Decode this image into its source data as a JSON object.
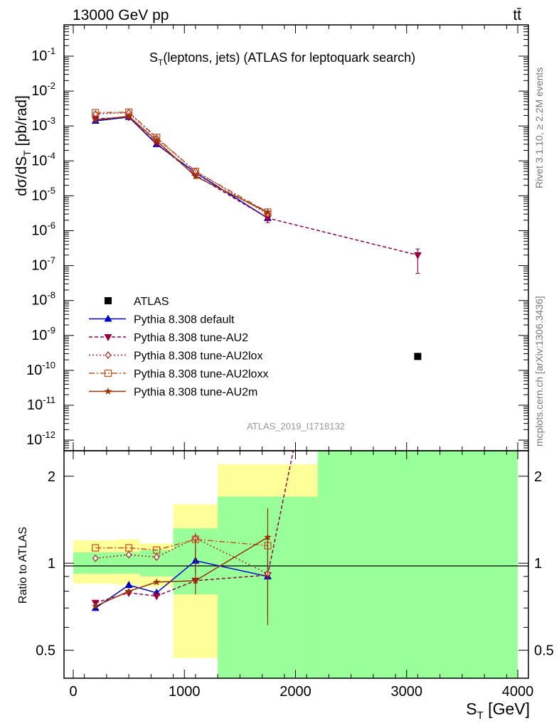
{
  "header": {
    "left": "13000 GeV pp",
    "right": "tt̄"
  },
  "side_labels": {
    "rivet": "Rivet 3.1.10, ≥ 2.2M events",
    "mcplots": "mcplots.cern.ch [arXiv:1306.3436]"
  },
  "chart_data": [
    {
      "type": "line",
      "panel": "main",
      "title": "S_T(leptons, jets) (ATLAS for leptoquark search)",
      "ylabel": "dσ/dS_T [pb/rad]",
      "ylog": true,
      "ylim": [
        5e-13,
        1
      ],
      "xlim": [
        -100,
        4000
      ],
      "y_ticks": [
        {
          "exp": -12,
          "label": "10^-12"
        },
        {
          "exp": -11,
          "label": "10^-11"
        },
        {
          "exp": -10,
          "label": "10^-10"
        },
        {
          "exp": -9,
          "label": "10^-9"
        },
        {
          "exp": -8,
          "label": "10^-8"
        },
        {
          "exp": -7,
          "label": "10^-7"
        },
        {
          "exp": -6,
          "label": "10^-6"
        },
        {
          "exp": -5,
          "label": "10^-5"
        },
        {
          "exp": -4,
          "label": "10^-4"
        },
        {
          "exp": -3,
          "label": "10^-3"
        },
        {
          "exp": -2,
          "label": "10^-2"
        },
        {
          "exp": -1,
          "label": "10^-1"
        }
      ],
      "watermark": "ATLAS_2019_I1718132",
      "data_points": {
        "name": "ATLAS",
        "marker": "square",
        "color": "#000000",
        "points": [
          {
            "x": 3100,
            "y": 2.5e-10
          }
        ]
      },
      "series": [
        {
          "name": "Pythia 8.308 default",
          "color": "#0000cc",
          "dash": "",
          "marker": "triangle-up",
          "x": [
            200,
            500,
            750,
            1100,
            1750
          ],
          "y": [
            0.0014,
            0.0018,
            0.0003,
            4.6e-05,
            2.3e-06
          ]
        },
        {
          "name": "Pythia 8.308 tune-AU2",
          "color": "#990044",
          "dash": "5,3",
          "marker": "triangle-down",
          "x": [
            200,
            500,
            750,
            1100,
            1750,
            3100
          ],
          "y": [
            0.0016,
            0.0018,
            0.00032,
            3.9e-05,
            2.3e-06,
            2e-07
          ],
          "err_low": [
            null,
            null,
            null,
            null,
            1.7e-06,
            6e-08
          ],
          "err_high": [
            null,
            null,
            null,
            null,
            3e-06,
            3e-07
          ]
        },
        {
          "name": "Pythia 8.308 tune-AU2lox",
          "color": "#aa2222",
          "dash": "2,3",
          "marker": "diamond",
          "x": [
            200,
            500,
            750,
            1100,
            1750
          ],
          "y": [
            0.0022,
            0.0024,
            0.00044,
            5e-05,
            3e-06
          ]
        },
        {
          "name": "Pythia 8.308 tune-AU2loxx",
          "color": "#cc5522",
          "dash": "8,3,2,3",
          "marker": "square-open",
          "x": [
            200,
            500,
            750,
            1100,
            1750
          ],
          "y": [
            0.0024,
            0.0025,
            0.00047,
            5e-05,
            3.4e-06
          ]
        },
        {
          "name": "Pythia 8.308 tune-AU2m",
          "color": "#993300",
          "dash": "",
          "marker": "star",
          "x": [
            200,
            500,
            750,
            1100,
            1750
          ],
          "y": [
            0.0015,
            0.0019,
            0.00038,
            3.6e-05,
            3.4e-06
          ]
        }
      ]
    },
    {
      "type": "line",
      "panel": "ratio",
      "ylabel": "Ratio to ATLAS",
      "xlabel": "S_T [GeV]",
      "ylog": true,
      "ylim": [
        0.4,
        2.45
      ],
      "xlim": [
        -100,
        4000
      ],
      "x_ticks": [
        0,
        1000,
        2000,
        3000,
        4000
      ],
      "y_ticks": [
        0.5,
        1,
        2
      ],
      "reference": 1,
      "bands": [
        {
          "x0": 0,
          "x1": 400,
          "green": [
            0.92,
            1.09
          ],
          "yellow": [
            0.85,
            1.2
          ]
        },
        {
          "x0": 400,
          "x1": 600,
          "green": [
            0.92,
            1.09
          ],
          "yellow": [
            0.84,
            1.21
          ]
        },
        {
          "x0": 600,
          "x1": 900,
          "green": [
            0.9,
            1.11
          ],
          "yellow": [
            0.83,
            1.17
          ]
        },
        {
          "x0": 900,
          "x1": 1300,
          "green": [
            0.78,
            1.32
          ],
          "yellow": [
            0.47,
            1.6
          ]
        },
        {
          "x0": 1300,
          "x1": 2200,
          "green": [
            0.38,
            1.7
          ],
          "yellow": [
            0.38,
            2.2
          ]
        },
        {
          "x0": 2200,
          "x1": 4000,
          "green": [
            0.38,
            2.45
          ],
          "yellow": [
            0.38,
            2.45
          ]
        }
      ],
      "series": [
        {
          "name": "Pythia 8.308 default",
          "x": [
            200,
            500,
            750,
            1100,
            1750
          ],
          "y": [
            0.7,
            0.84,
            0.79,
            1.02,
            0.9
          ],
          "err_low": [
            null,
            null,
            null,
            0.92,
            0.65
          ],
          "err_high": [
            null,
            null,
            null,
            1.13,
            1.22
          ]
        },
        {
          "name": "Pythia 8.308 tune-AU2",
          "x": [
            200,
            500,
            750,
            1100,
            1750,
            1980
          ],
          "y": [
            0.73,
            0.79,
            0.77,
            0.87,
            0.91,
            2.45
          ]
        },
        {
          "name": "Pythia 8.308 tune-AU2lox",
          "x": [
            200,
            500,
            750,
            1100,
            1750
          ],
          "y": [
            1.04,
            1.07,
            1.05,
            1.22,
            0.92
          ]
        },
        {
          "name": "Pythia 8.308 tune-AU2loxx",
          "x": [
            200,
            500,
            750,
            1100,
            1750
          ],
          "y": [
            1.13,
            1.13,
            1.11,
            1.21,
            1.15
          ]
        },
        {
          "name": "Pythia 8.308 tune-AU2m",
          "x": [
            200,
            500,
            750,
            1100,
            1750
          ],
          "y": [
            0.71,
            0.8,
            0.86,
            0.87,
            1.23
          ],
          "err_low": [
            null,
            null,
            null,
            0.78,
            0.61
          ],
          "err_high": [
            null,
            null,
            null,
            1.27,
            1.55
          ]
        }
      ]
    }
  ]
}
